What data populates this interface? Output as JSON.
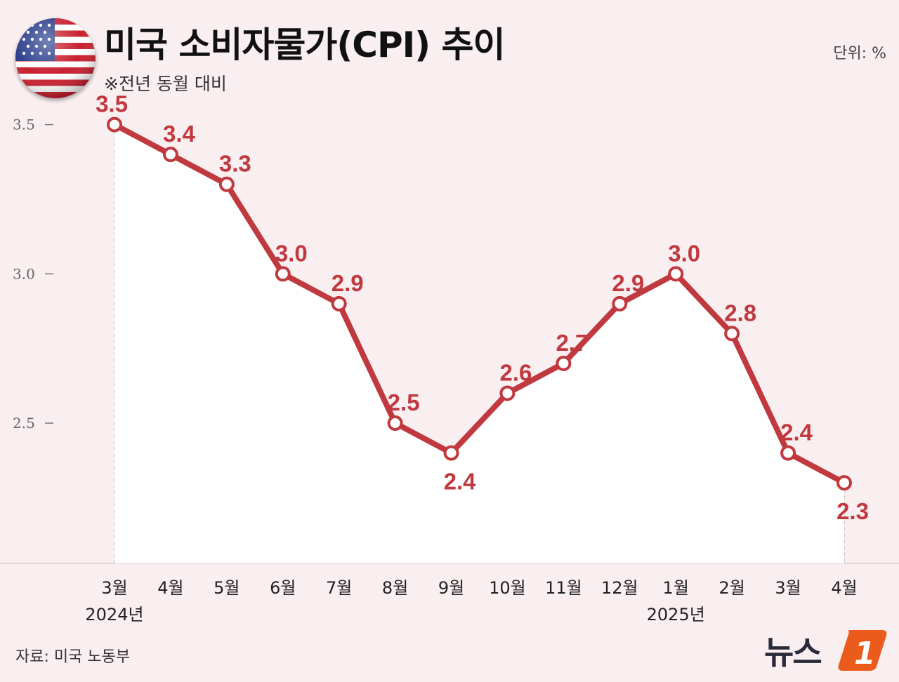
{
  "title": "미국 소비자물가(CPI) 추이",
  "subtitle": "※전년 동월 대비",
  "unit": "단위: %",
  "source": "자료: 미국 노동부",
  "logo_text": "뉴스1",
  "flag_icon": "us-flag-icon",
  "colors": {
    "line": "#c0393f",
    "background": "#f9eef0",
    "label": "#c0393f",
    "logo_orange": "#ea5b1c"
  },
  "chart_data": {
    "type": "line",
    "title": "미국 소비자물가(CPI) 추이",
    "categories": [
      "3월",
      "4월",
      "5월",
      "6월",
      "7월",
      "8월",
      "9월",
      "10월",
      "11월",
      "12월",
      "1월",
      "2월",
      "3월",
      "4월"
    ],
    "year_labels": [
      {
        "index": 0,
        "label": "2024년"
      },
      {
        "index": 10,
        "label": "2025년"
      }
    ],
    "series": [
      {
        "values": [
          3.5,
          3.4,
          3.3,
          3.0,
          2.9,
          2.5,
          2.4,
          2.6,
          2.7,
          2.9,
          3.0,
          2.8,
          2.4,
          2.3
        ]
      }
    ],
    "data_labels": [
      "3.5",
      "3.4",
      "3.3",
      "3.0",
      "2.9",
      "2.5",
      "2.4",
      "2.6",
      "2.7",
      "2.9",
      "3.0",
      "2.8",
      "2.4",
      "2.3"
    ],
    "yticks": [
      2.5,
      3.0,
      3.5
    ],
    "ytick_labels": [
      "2.5",
      "3.0",
      "3.5"
    ],
    "ylim": [
      2.03,
      3.72
    ],
    "grid": false,
    "legend": "none"
  }
}
